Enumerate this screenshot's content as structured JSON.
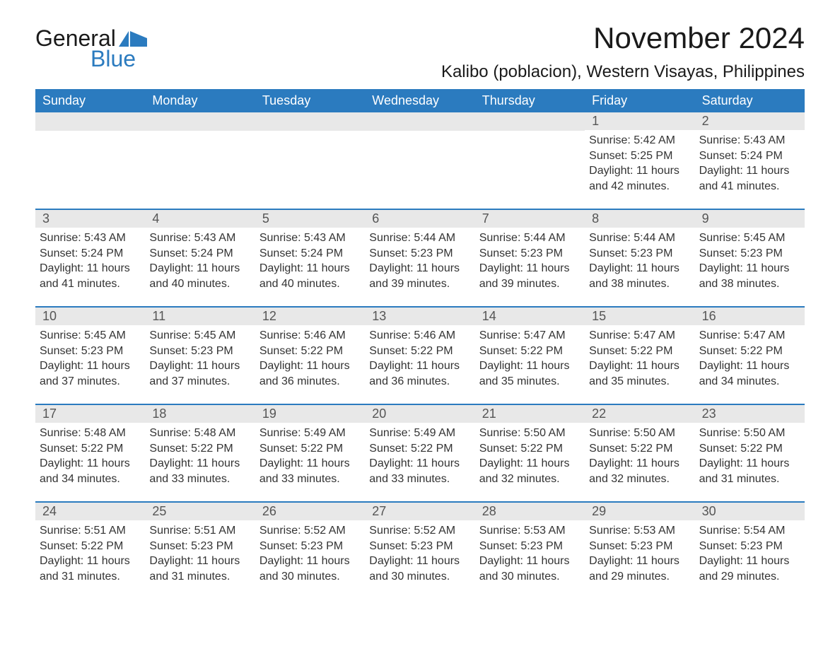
{
  "logo": {
    "general": "General",
    "blue": "Blue"
  },
  "title": "November 2024",
  "location": "Kalibo (poblacion), Western Visayas, Philippines",
  "colors": {
    "header_bg": "#2b7bbf",
    "header_text": "#ffffff",
    "daynum_bg": "#e8e8e8",
    "text": "#333333",
    "page_bg": "#ffffff",
    "row_border": "#2b7bbf"
  },
  "weekdays": [
    "Sunday",
    "Monday",
    "Tuesday",
    "Wednesday",
    "Thursday",
    "Friday",
    "Saturday"
  ],
  "weeks": [
    [
      null,
      null,
      null,
      null,
      null,
      {
        "n": "1",
        "sunrise": "Sunrise: 5:42 AM",
        "sunset": "Sunset: 5:25 PM",
        "dl1": "Daylight: 11 hours",
        "dl2": "and 42 minutes."
      },
      {
        "n": "2",
        "sunrise": "Sunrise: 5:43 AM",
        "sunset": "Sunset: 5:24 PM",
        "dl1": "Daylight: 11 hours",
        "dl2": "and 41 minutes."
      }
    ],
    [
      {
        "n": "3",
        "sunrise": "Sunrise: 5:43 AM",
        "sunset": "Sunset: 5:24 PM",
        "dl1": "Daylight: 11 hours",
        "dl2": "and 41 minutes."
      },
      {
        "n": "4",
        "sunrise": "Sunrise: 5:43 AM",
        "sunset": "Sunset: 5:24 PM",
        "dl1": "Daylight: 11 hours",
        "dl2": "and 40 minutes."
      },
      {
        "n": "5",
        "sunrise": "Sunrise: 5:43 AM",
        "sunset": "Sunset: 5:24 PM",
        "dl1": "Daylight: 11 hours",
        "dl2": "and 40 minutes."
      },
      {
        "n": "6",
        "sunrise": "Sunrise: 5:44 AM",
        "sunset": "Sunset: 5:23 PM",
        "dl1": "Daylight: 11 hours",
        "dl2": "and 39 minutes."
      },
      {
        "n": "7",
        "sunrise": "Sunrise: 5:44 AM",
        "sunset": "Sunset: 5:23 PM",
        "dl1": "Daylight: 11 hours",
        "dl2": "and 39 minutes."
      },
      {
        "n": "8",
        "sunrise": "Sunrise: 5:44 AM",
        "sunset": "Sunset: 5:23 PM",
        "dl1": "Daylight: 11 hours",
        "dl2": "and 38 minutes."
      },
      {
        "n": "9",
        "sunrise": "Sunrise: 5:45 AM",
        "sunset": "Sunset: 5:23 PM",
        "dl1": "Daylight: 11 hours",
        "dl2": "and 38 minutes."
      }
    ],
    [
      {
        "n": "10",
        "sunrise": "Sunrise: 5:45 AM",
        "sunset": "Sunset: 5:23 PM",
        "dl1": "Daylight: 11 hours",
        "dl2": "and 37 minutes."
      },
      {
        "n": "11",
        "sunrise": "Sunrise: 5:45 AM",
        "sunset": "Sunset: 5:23 PM",
        "dl1": "Daylight: 11 hours",
        "dl2": "and 37 minutes."
      },
      {
        "n": "12",
        "sunrise": "Sunrise: 5:46 AM",
        "sunset": "Sunset: 5:22 PM",
        "dl1": "Daylight: 11 hours",
        "dl2": "and 36 minutes."
      },
      {
        "n": "13",
        "sunrise": "Sunrise: 5:46 AM",
        "sunset": "Sunset: 5:22 PM",
        "dl1": "Daylight: 11 hours",
        "dl2": "and 36 minutes."
      },
      {
        "n": "14",
        "sunrise": "Sunrise: 5:47 AM",
        "sunset": "Sunset: 5:22 PM",
        "dl1": "Daylight: 11 hours",
        "dl2": "and 35 minutes."
      },
      {
        "n": "15",
        "sunrise": "Sunrise: 5:47 AM",
        "sunset": "Sunset: 5:22 PM",
        "dl1": "Daylight: 11 hours",
        "dl2": "and 35 minutes."
      },
      {
        "n": "16",
        "sunrise": "Sunrise: 5:47 AM",
        "sunset": "Sunset: 5:22 PM",
        "dl1": "Daylight: 11 hours",
        "dl2": "and 34 minutes."
      }
    ],
    [
      {
        "n": "17",
        "sunrise": "Sunrise: 5:48 AM",
        "sunset": "Sunset: 5:22 PM",
        "dl1": "Daylight: 11 hours",
        "dl2": "and 34 minutes."
      },
      {
        "n": "18",
        "sunrise": "Sunrise: 5:48 AM",
        "sunset": "Sunset: 5:22 PM",
        "dl1": "Daylight: 11 hours",
        "dl2": "and 33 minutes."
      },
      {
        "n": "19",
        "sunrise": "Sunrise: 5:49 AM",
        "sunset": "Sunset: 5:22 PM",
        "dl1": "Daylight: 11 hours",
        "dl2": "and 33 minutes."
      },
      {
        "n": "20",
        "sunrise": "Sunrise: 5:49 AM",
        "sunset": "Sunset: 5:22 PM",
        "dl1": "Daylight: 11 hours",
        "dl2": "and 33 minutes."
      },
      {
        "n": "21",
        "sunrise": "Sunrise: 5:50 AM",
        "sunset": "Sunset: 5:22 PM",
        "dl1": "Daylight: 11 hours",
        "dl2": "and 32 minutes."
      },
      {
        "n": "22",
        "sunrise": "Sunrise: 5:50 AM",
        "sunset": "Sunset: 5:22 PM",
        "dl1": "Daylight: 11 hours",
        "dl2": "and 32 minutes."
      },
      {
        "n": "23",
        "sunrise": "Sunrise: 5:50 AM",
        "sunset": "Sunset: 5:22 PM",
        "dl1": "Daylight: 11 hours",
        "dl2": "and 31 minutes."
      }
    ],
    [
      {
        "n": "24",
        "sunrise": "Sunrise: 5:51 AM",
        "sunset": "Sunset: 5:22 PM",
        "dl1": "Daylight: 11 hours",
        "dl2": "and 31 minutes."
      },
      {
        "n": "25",
        "sunrise": "Sunrise: 5:51 AM",
        "sunset": "Sunset: 5:23 PM",
        "dl1": "Daylight: 11 hours",
        "dl2": "and 31 minutes."
      },
      {
        "n": "26",
        "sunrise": "Sunrise: 5:52 AM",
        "sunset": "Sunset: 5:23 PM",
        "dl1": "Daylight: 11 hours",
        "dl2": "and 30 minutes."
      },
      {
        "n": "27",
        "sunrise": "Sunrise: 5:52 AM",
        "sunset": "Sunset: 5:23 PM",
        "dl1": "Daylight: 11 hours",
        "dl2": "and 30 minutes."
      },
      {
        "n": "28",
        "sunrise": "Sunrise: 5:53 AM",
        "sunset": "Sunset: 5:23 PM",
        "dl1": "Daylight: 11 hours",
        "dl2": "and 30 minutes."
      },
      {
        "n": "29",
        "sunrise": "Sunrise: 5:53 AM",
        "sunset": "Sunset: 5:23 PM",
        "dl1": "Daylight: 11 hours",
        "dl2": "and 29 minutes."
      },
      {
        "n": "30",
        "sunrise": "Sunrise: 5:54 AM",
        "sunset": "Sunset: 5:23 PM",
        "dl1": "Daylight: 11 hours",
        "dl2": "and 29 minutes."
      }
    ]
  ]
}
